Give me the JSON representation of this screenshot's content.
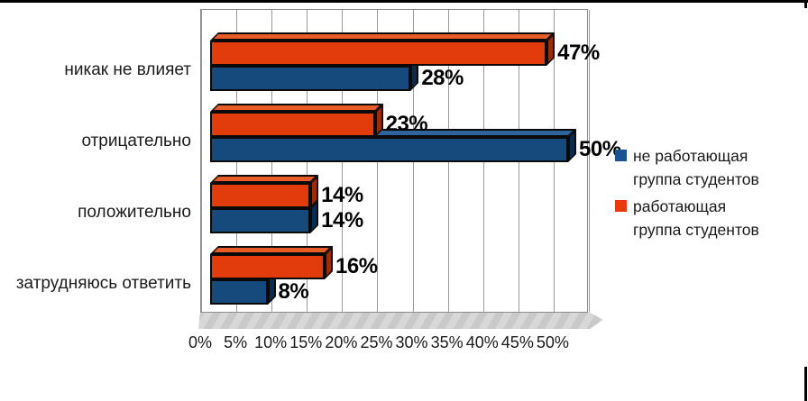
{
  "frame": {
    "top_rule_color": "#000000",
    "background": "#ffffff"
  },
  "chart_data": {
    "type": "bar",
    "orientation": "horizontal",
    "style": "3d",
    "title": "",
    "categories": [
      "никак не влияет",
      "отрицательно",
      "положительно",
      "затрудняюсь ответить"
    ],
    "series": [
      {
        "name": "работающая группа студентов",
        "color_front": "#e23b0c",
        "color_top": "#e85c28",
        "color_side": "#9c2b07",
        "values": [
          47,
          23,
          14,
          16
        ],
        "value_labels": [
          "47%",
          "23%",
          "14%",
          "16%"
        ]
      },
      {
        "name": "не работающая группа  студентов",
        "color_front": "#164a7c",
        "color_top": "#2d649c",
        "color_side": "#0c2c4f",
        "values": [
          28,
          50,
          14,
          8
        ],
        "value_labels": [
          "28%",
          "50%",
          "14%",
          "8%"
        ]
      }
    ],
    "x_axis": {
      "min": 0,
      "max": 55,
      "tick_step": 5,
      "ticks": [
        "0%",
        "5%",
        "10%",
        "15%",
        "20%",
        "25%",
        "30%",
        "35%",
        "40%",
        "45%",
        "50%"
      ]
    },
    "gridlines": true,
    "legend": {
      "position": "right",
      "entries": [
        {
          "label": "не работающая группа  студентов",
          "color": "#1b5392"
        },
        {
          "label": "работающая группа студентов",
          "color": "#e8380c"
        }
      ]
    }
  }
}
